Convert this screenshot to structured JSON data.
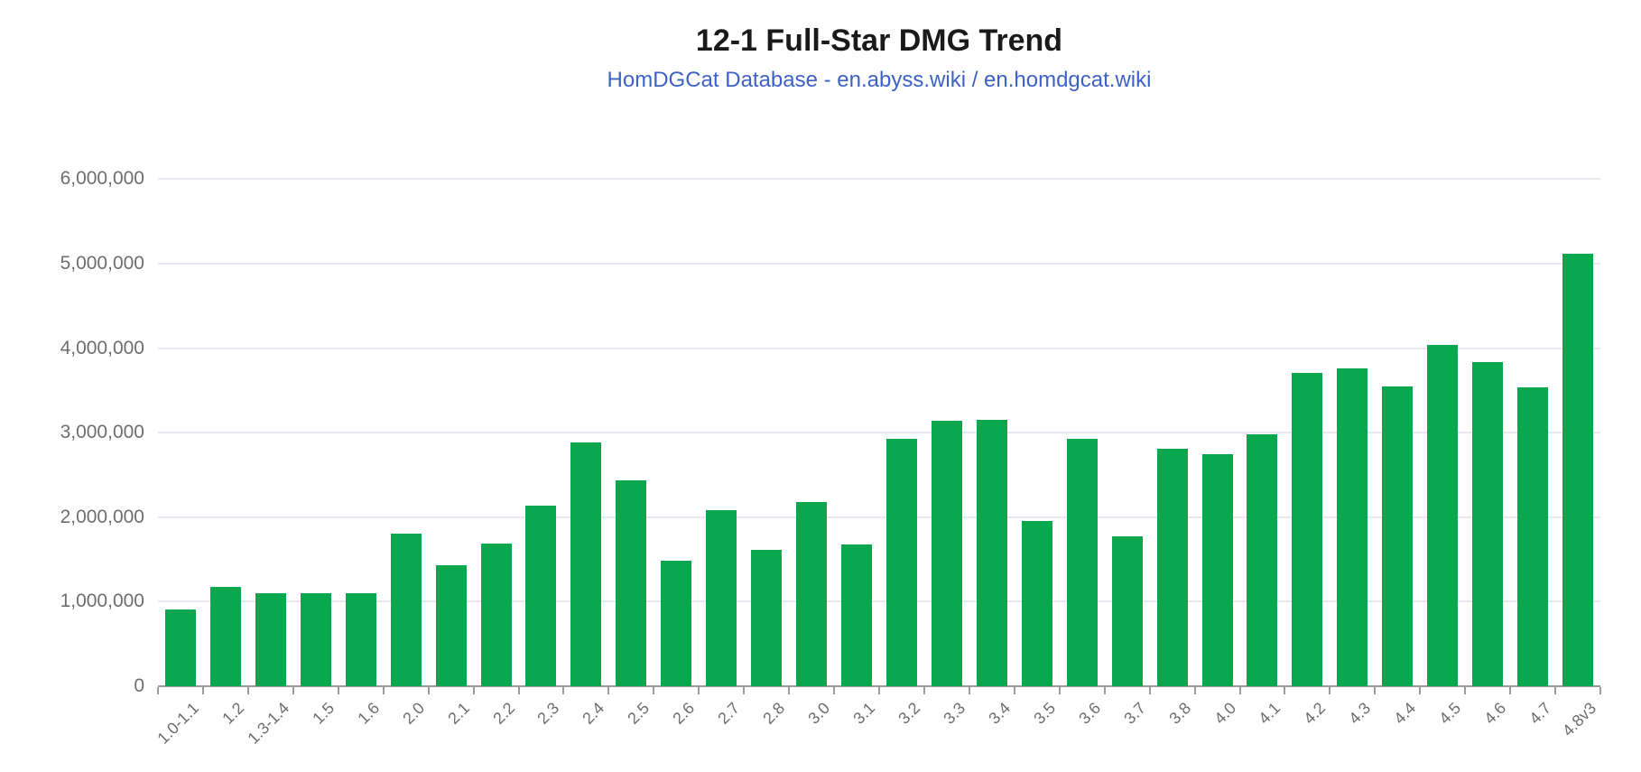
{
  "chart_data": {
    "type": "bar",
    "title": "12-1 Full-Star DMG Trend",
    "subtitle": "HomDGCat Database - en.abyss.wiki / en.homdgcat.wiki",
    "categories": [
      "1.0-1.1",
      "1.2",
      "1.3-1.4",
      "1.5",
      "1.6",
      "2.0",
      "2.1",
      "2.2",
      "2.3",
      "2.4",
      "2.5",
      "2.6",
      "2.7",
      "2.8",
      "3.0",
      "3.1",
      "3.2",
      "3.3",
      "3.4",
      "3.5",
      "3.6",
      "3.7",
      "3.8",
      "4.0",
      "4.1",
      "4.2",
      "4.3",
      "4.4",
      "4.5",
      "4.6",
      "4.7",
      "4.8v3"
    ],
    "values": [
      910000,
      1180000,
      1100000,
      1100000,
      1100000,
      1810000,
      1430000,
      1690000,
      2140000,
      2880000,
      2440000,
      1480000,
      2080000,
      1610000,
      2180000,
      1680000,
      2930000,
      3140000,
      3150000,
      1960000,
      2930000,
      1770000,
      2810000,
      2750000,
      2980000,
      3710000,
      3760000,
      3550000,
      4040000,
      3840000,
      3540000,
      5120000
    ],
    "xlabel": "",
    "ylabel": "",
    "ylim": [
      0,
      6000000
    ],
    "yticks": [
      {
        "value": 0,
        "label": "0"
      },
      {
        "value": 1000000,
        "label": "1,000,000"
      },
      {
        "value": 2000000,
        "label": "2,000,000"
      },
      {
        "value": 3000000,
        "label": "3,000,000"
      },
      {
        "value": 4000000,
        "label": "4,000,000"
      },
      {
        "value": 5000000,
        "label": "5,000,000"
      },
      {
        "value": 6000000,
        "label": "6,000,000"
      }
    ],
    "grid": "horizontal-only",
    "legend": "none",
    "colors": {
      "bar": "#0AA74F",
      "gridline": "#E8E8F2",
      "axis": "#9A9A9A",
      "tick_label": "#6E6E6E",
      "title": "#1A1A1A",
      "subtitle": "#3D62C6"
    }
  }
}
